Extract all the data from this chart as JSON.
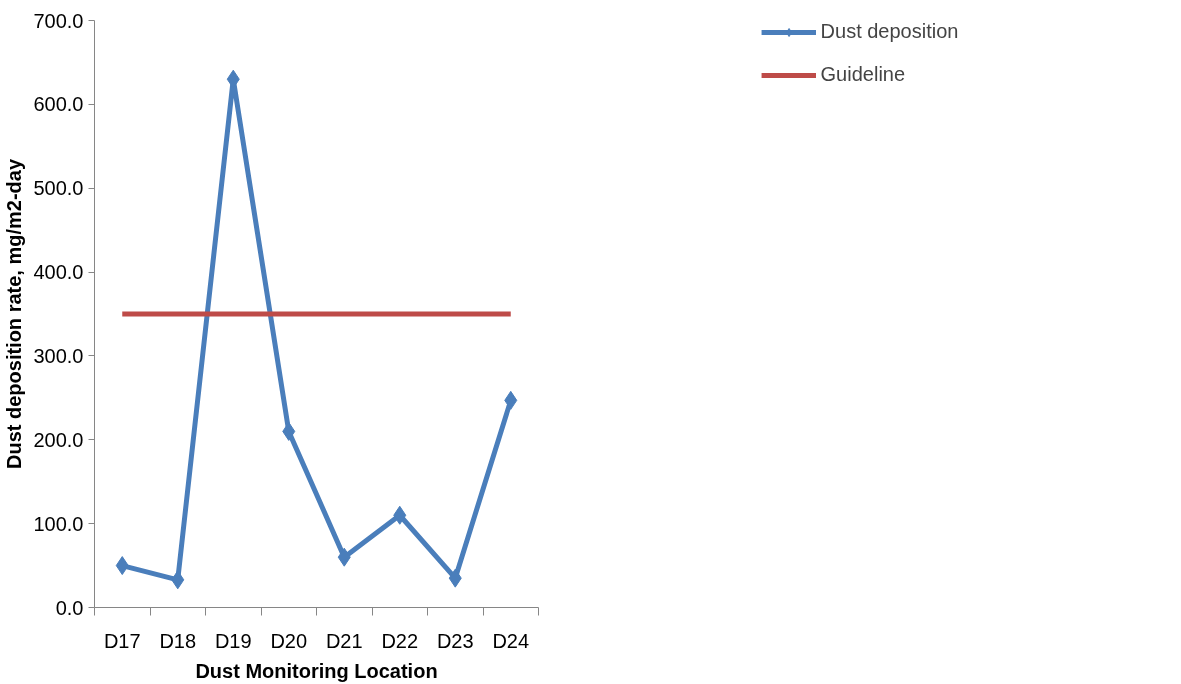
{
  "chart_data": {
    "type": "line",
    "xlabel": "Dust Monitoring Location",
    "ylabel": "Dust deposition rate, mg/m2-day",
    "categories": [
      "D17",
      "D18",
      "D19",
      "D20",
      "D21",
      "D22",
      "D23",
      "D24"
    ],
    "series": [
      {
        "name": "Dust deposition",
        "color": "#4a7ebb",
        "marker": "diamond",
        "values": [
          50,
          33,
          630,
          210,
          60,
          110,
          35,
          247
        ]
      },
      {
        "name": "Guideline",
        "color": "#be4b48",
        "marker": "none",
        "values": [
          350,
          350,
          350,
          350,
          350,
          350,
          350,
          350
        ]
      }
    ],
    "ylim": [
      0,
      700
    ],
    "yticks": [
      {
        "value": 0,
        "label": "0.0"
      },
      {
        "value": 100,
        "label": "100.0"
      },
      {
        "value": 200,
        "label": "200.0"
      },
      {
        "value": 300,
        "label": "300.0"
      },
      {
        "value": 400,
        "label": "400.0"
      },
      {
        "value": 500,
        "label": "500.0"
      },
      {
        "value": 600,
        "label": "600.0"
      },
      {
        "value": 700,
        "label": "700.0"
      }
    ],
    "grid": false,
    "legend": "right",
    "line_style": "solid"
  }
}
